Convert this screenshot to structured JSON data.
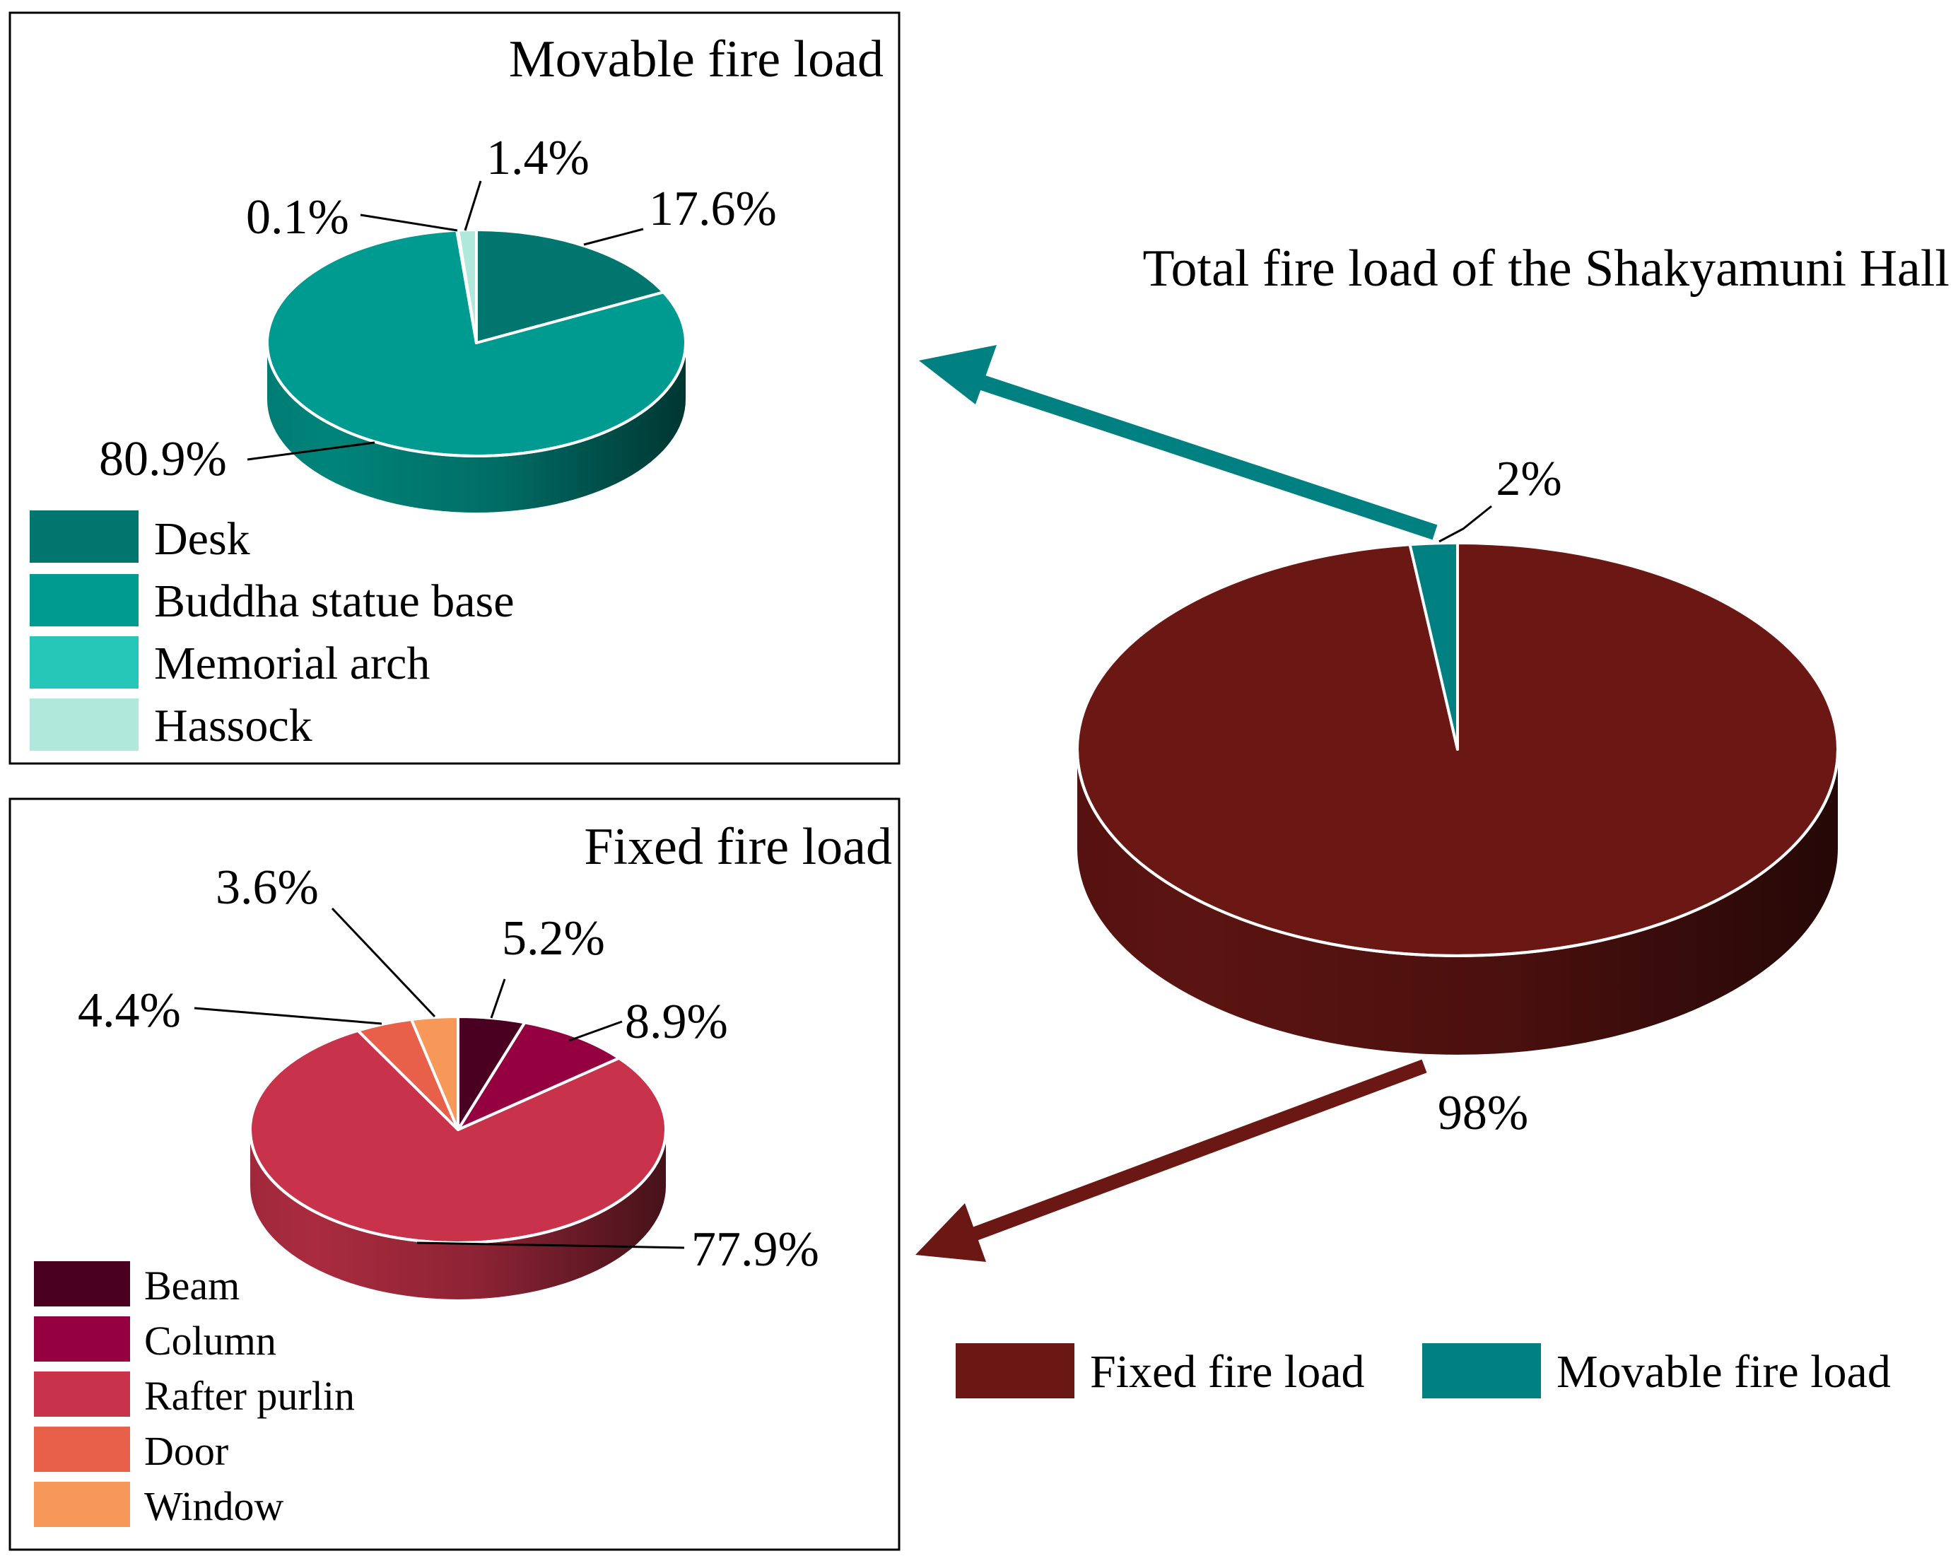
{
  "chart_data": [
    {
      "type": "pie",
      "title": "Total fire load of the Shakyamuni Hall",
      "slices": [
        {
          "name": "Fixed fire load",
          "value": 98,
          "label": "98%",
          "color": "#6b1714"
        },
        {
          "name": "Movable fire load",
          "value": 2,
          "label": "2%",
          "color": "#008080"
        }
      ],
      "legend": "bottom"
    },
    {
      "type": "pie",
      "title": "Movable fire load",
      "slices": [
        {
          "name": "Desk",
          "value": 17.6,
          "label": "17.6%",
          "color": "#00766e"
        },
        {
          "name": "Buddha statue base",
          "value": 80.9,
          "label": "80.9%",
          "color": "#009b90"
        },
        {
          "name": "Memorial arch",
          "value": 0.1,
          "label": "0.1%",
          "color": "#26c6b8"
        },
        {
          "name": "Hassock",
          "value": 1.4,
          "label": "1.4%",
          "color": "#b0e8dc"
        }
      ],
      "legend": "bottom-left"
    },
    {
      "type": "pie",
      "title": "Fixed fire load",
      "slices": [
        {
          "name": "Beam",
          "value": 5.2,
          "label": "5.2%",
          "color": "#4a0020"
        },
        {
          "name": "Column",
          "value": 8.9,
          "label": "8.9%",
          "color": "#940040"
        },
        {
          "name": "Rafter purlin",
          "value": 77.9,
          "label": "77.9%",
          "color": "#c8324a"
        },
        {
          "name": "Door",
          "value": 4.4,
          "label": "4.4%",
          "color": "#e8604a"
        },
        {
          "name": "Window",
          "value": 3.6,
          "label": "3.6%",
          "color": "#f89858"
        }
      ],
      "legend": "bottom-left"
    }
  ]
}
